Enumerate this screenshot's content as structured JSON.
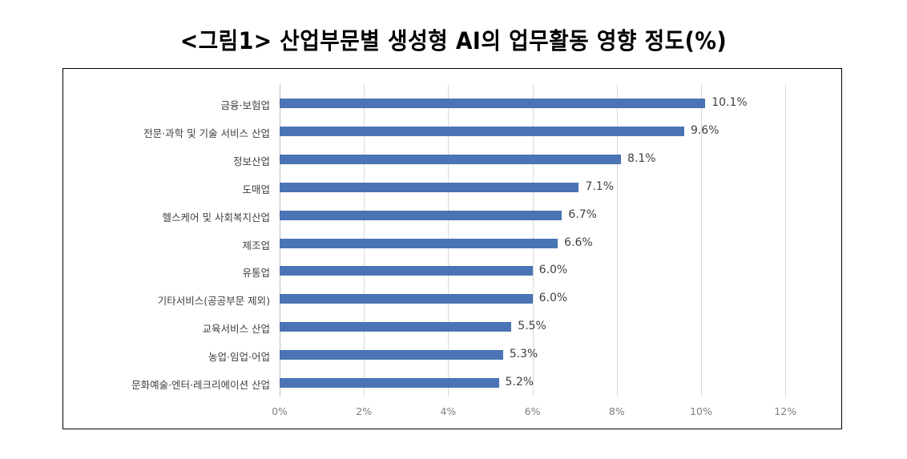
{
  "header": {
    "title": "<그림1> 산업부문별 생성형 AI의 업무활동 영향 정도(%)"
  },
  "colors": {
    "bar": "#4a74b4",
    "gridline": "#d9d9d9",
    "label_text": "#404040",
    "tick_text": "#7f7f7f",
    "frame": "#000000"
  },
  "chart_data": {
    "type": "bar",
    "orientation": "horizontal",
    "title": "<그림1> 산업부문별 생성형 AI의 업무활동 영향 정도(%)",
    "xlabel": "",
    "ylabel": "",
    "categories": [
      "금융·보험업",
      "전문·과학 및 기술 서비스 산업",
      "정보산업",
      "도매업",
      "헬스케어 및 사회복지산업",
      "제조업",
      "유통업",
      "기타서비스(공공부문 제외)",
      "교육서비스 산업",
      "농업·임업·어업",
      "문화예술·엔터·레크리에이션 산업"
    ],
    "values": [
      10.1,
      9.6,
      8.1,
      7.1,
      6.7,
      6.6,
      6.0,
      6.0,
      5.5,
      5.3,
      5.2
    ],
    "value_labels": [
      "10.1%",
      "9.6%",
      "8.1%",
      "7.1%",
      "6.7%",
      "6.6%",
      "6.0%",
      "6.0%",
      "5.5%",
      "5.3%",
      "5.2%"
    ],
    "xlim": [
      0,
      12
    ],
    "xticks": [
      "0%",
      "2%",
      "4%",
      "6%",
      "8%",
      "10%",
      "12%"
    ],
    "grid": "vertical",
    "legend": "none"
  }
}
